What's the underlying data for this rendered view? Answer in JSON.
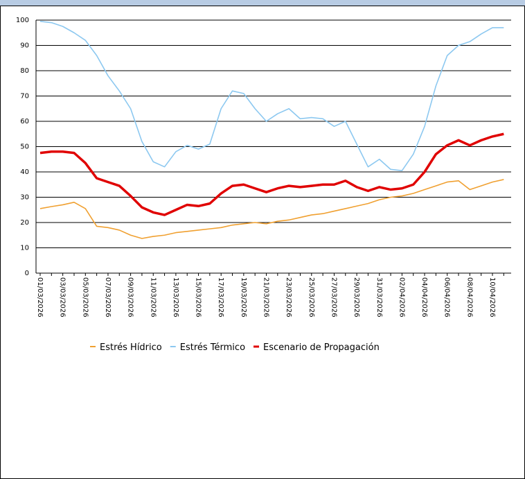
{
  "chart_data": {
    "type": "line",
    "categories": [
      "01/03/2026",
      null,
      "03/03/2026",
      null,
      "05/03/2026",
      null,
      "07/03/2026",
      null,
      "09/03/2026",
      null,
      "11/03/2026",
      null,
      "13/03/2026",
      null,
      "15/03/2026",
      null,
      "17/03/2026",
      null,
      "19/03/2026",
      null,
      "21/03/2026",
      null,
      "23/03/2026",
      null,
      "25/03/2026",
      null,
      "27/03/2026",
      null,
      "29/03/2026",
      null,
      "31/03/2026",
      null,
      "02/04/2026",
      null,
      "04/04/2026",
      null,
      "06/04/2026",
      null,
      "08/04/2026",
      null,
      "10/04/2026",
      null
    ],
    "series": [
      {
        "name": "Estrés Hídrico",
        "color": "#f0a030",
        "values": [
          25.5,
          26.3,
          27,
          28,
          25.5,
          18.5,
          18,
          17,
          15,
          13.7,
          14.5,
          15,
          16,
          16.5,
          17,
          17.5,
          18,
          19,
          19.5,
          20,
          19.5,
          20.5,
          21,
          22,
          23,
          23.5,
          24.5,
          25.5,
          26.5,
          27.5,
          29,
          30,
          30.5,
          31.5,
          33,
          34.5,
          36,
          36.5,
          33,
          34.5,
          36,
          37
        ]
      },
      {
        "name": "Estrés Térmico",
        "color": "#8cc8f0",
        "values": [
          99.5,
          99,
          97.5,
          95,
          92,
          86,
          78,
          72,
          65,
          52,
          44,
          42,
          48,
          50.5,
          49,
          51,
          65,
          72,
          71,
          65,
          60,
          63,
          65,
          61,
          61.5,
          61,
          58,
          60,
          51,
          42,
          45,
          41,
          40.5,
          47,
          58,
          74,
          86,
          90,
          91.5,
          94.5,
          97,
          97
        ]
      },
      {
        "name": "Escenario de Propagación",
        "color": "#e00000",
        "values": [
          47.5,
          48,
          48,
          47.5,
          43.5,
          37.5,
          36,
          34.5,
          30.5,
          26,
          24,
          23,
          25,
          27,
          26.5,
          27.5,
          31.5,
          34.5,
          35,
          33.5,
          32,
          33.5,
          34.5,
          34,
          34.5,
          35,
          35,
          36.5,
          34,
          32.5,
          34,
          33,
          33.5,
          35,
          40,
          47,
          50.5,
          52.5,
          50.5,
          52.5,
          54,
          55
        ]
      }
    ],
    "ylim": [
      0,
      100
    ],
    "yticks": [
      0,
      10,
      20,
      30,
      40,
      50,
      60,
      70,
      80,
      90,
      100
    ],
    "grid": true
  }
}
